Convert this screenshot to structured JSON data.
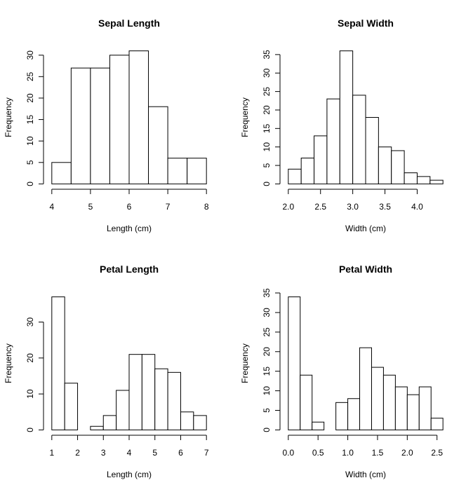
{
  "chart_data": [
    {
      "type": "histogram",
      "title": "Sepal Length",
      "x_label": "Length (cm)",
      "y_label": "Frequency",
      "bins": [
        4,
        4.5,
        5,
        5.5,
        6,
        6.5,
        7,
        7.5,
        8
      ],
      "counts": [
        5,
        27,
        27,
        30,
        31,
        18,
        6,
        6
      ],
      "xlim": [
        4,
        8
      ],
      "ylim": [
        0,
        31
      ],
      "xticks": [
        4,
        5,
        6,
        7,
        8
      ],
      "yticks": [
        0,
        5,
        10,
        15,
        20,
        25,
        30
      ],
      "color": "#ffffff"
    },
    {
      "type": "histogram",
      "title": "Sepal Width",
      "x_label": "Width (cm)",
      "y_label": "Frequency",
      "bins": [
        2.0,
        2.2,
        2.4,
        2.6,
        2.8,
        3.0,
        3.2,
        3.4,
        3.6,
        3.8,
        4.0,
        4.2,
        4.4
      ],
      "counts": [
        4,
        7,
        13,
        23,
        36,
        24,
        18,
        10,
        9,
        3,
        2,
        1
      ],
      "xlim": [
        2.0,
        4.4
      ],
      "ylim": [
        0,
        36
      ],
      "xticks": [
        {
          "value": 2,
          "label": "2.0"
        },
        2.5,
        {
          "value": 3,
          "label": "3.0"
        },
        3.5,
        {
          "value": 4,
          "label": "4.0"
        }
      ],
      "yticks": [
        0,
        5,
        10,
        15,
        20,
        25,
        30,
        35
      ],
      "color": "#ffffff"
    },
    {
      "type": "histogram",
      "title": "Petal Length",
      "x_label": "Length (cm)",
      "y_label": "Frequency",
      "bins": [
        1,
        1.5,
        2,
        2.5,
        3,
        3.5,
        4,
        4.5,
        5,
        5.5,
        6,
        6.5,
        7
      ],
      "counts": [
        37,
        13,
        0,
        1,
        4,
        11,
        21,
        21,
        17,
        16,
        5,
        4
      ],
      "xlim": [
        1,
        7
      ],
      "ylim": [
        0,
        37
      ],
      "xticks": [
        1,
        2,
        3,
        4,
        5,
        6,
        7
      ],
      "yticks": [
        0,
        10,
        20,
        30
      ],
      "color": "#ffffff"
    },
    {
      "type": "histogram",
      "title": "Petal Width",
      "x_label": "Width (cm)",
      "y_label": "Frequency",
      "bins": [
        0,
        0.2,
        0.4,
        0.6,
        0.8,
        1.0,
        1.2,
        1.4,
        1.6,
        1.8,
        2.0,
        2.2,
        2.4,
        2.6
      ],
      "counts": [
        34,
        14,
        2,
        0,
        7,
        8,
        21,
        16,
        14,
        11,
        9,
        11,
        3
      ],
      "xlim": [
        0,
        2.6
      ],
      "ylim": [
        0,
        34
      ],
      "xticks": [
        {
          "value": 0,
          "label": "0.0"
        },
        0.5,
        {
          "value": 1,
          "label": "1.0"
        },
        1.5,
        {
          "value": 2,
          "label": "2.0"
        },
        2.5
      ],
      "yticks": [
        0,
        5,
        10,
        15,
        20,
        25,
        30,
        35
      ],
      "color": "#ffffff"
    }
  ]
}
